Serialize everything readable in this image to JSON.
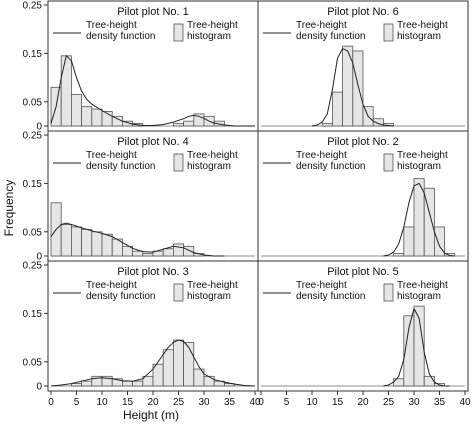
{
  "figure": {
    "ylabel": "Frequency",
    "xlabel": "Height (m)",
    "x_ticks": [
      0,
      5,
      10,
      15,
      20,
      25,
      30,
      35,
      40
    ],
    "y_ticks": [
      0,
      0.05,
      0.15,
      0.25
    ],
    "y_tick_labels": [
      "0",
      "0.05",
      "0.15",
      "0.25"
    ],
    "xlim": [
      0,
      40
    ],
    "ylim": [
      0,
      0.25
    ],
    "legend": {
      "curve_label_line1": "Tree-height",
      "curve_label_line2": "density function",
      "hist_label_line1": "Tree-height",
      "hist_label_line2": "histogram"
    }
  },
  "chart_data": [
    {
      "type": "bar",
      "title": "Pilot plot No. 1",
      "bin_width": 2,
      "bin_starts": [
        0,
        2,
        4,
        6,
        8,
        10,
        12,
        14,
        16,
        18,
        20,
        22,
        24,
        26,
        28,
        30,
        32,
        34,
        36,
        38
      ],
      "values": [
        0.08,
        0.145,
        0.065,
        0.04,
        0.035,
        0.03,
        0.02,
        0.01,
        0.005,
        0,
        0,
        0,
        0.005,
        0.01,
        0.025,
        0.02,
        0.01,
        0,
        0,
        0
      ],
      "density_x": [
        0,
        1,
        2,
        3,
        4,
        5,
        6,
        7,
        8,
        10,
        12,
        14,
        16,
        18,
        20,
        22,
        24,
        26,
        27,
        28,
        29,
        30,
        31,
        32,
        34,
        36,
        38,
        40
      ],
      "density_y": [
        0.005,
        0.04,
        0.1,
        0.145,
        0.135,
        0.1,
        0.072,
        0.055,
        0.045,
        0.032,
        0.02,
        0.01,
        0.004,
        0.001,
        0.001,
        0.003,
        0.008,
        0.015,
        0.02,
        0.022,
        0.02,
        0.016,
        0.01,
        0.006,
        0.002,
        0,
        0,
        0
      ]
    },
    {
      "type": "bar",
      "title": "Pilot plot No. 6",
      "bin_width": 2,
      "bin_starts": [
        0,
        2,
        4,
        6,
        8,
        10,
        12,
        14,
        16,
        18,
        20,
        22,
        24,
        26,
        28,
        30,
        32,
        34,
        36,
        38
      ],
      "values": [
        0,
        0,
        0,
        0,
        0,
        0,
        0.005,
        0.07,
        0.165,
        0.155,
        0.04,
        0.015,
        0.005,
        0,
        0,
        0,
        0,
        0,
        0,
        0
      ],
      "density_x": [
        10,
        11,
        12,
        13,
        14,
        15,
        16,
        17,
        18,
        19,
        20,
        21,
        22,
        23,
        24,
        25,
        26
      ],
      "density_y": [
        0,
        0.002,
        0.008,
        0.025,
        0.075,
        0.14,
        0.16,
        0.155,
        0.13,
        0.085,
        0.045,
        0.02,
        0.01,
        0.005,
        0.002,
        0.001,
        0
      ]
    },
    {
      "type": "bar",
      "title": "Pilot plot No. 4",
      "bin_width": 2,
      "bin_starts": [
        0,
        2,
        4,
        6,
        8,
        10,
        12,
        14,
        16,
        18,
        20,
        22,
        24,
        26,
        28,
        30,
        32,
        34,
        36,
        38
      ],
      "values": [
        0.11,
        0.065,
        0.06,
        0.055,
        0.05,
        0.045,
        0.035,
        0.02,
        0.01,
        0.005,
        0.01,
        0.015,
        0.025,
        0.02,
        0.005,
        0,
        0,
        0,
        0,
        0
      ],
      "density_x": [
        0,
        1,
        2,
        3,
        4,
        6,
        8,
        10,
        12,
        14,
        16,
        18,
        20,
        22,
        24,
        26,
        28,
        30,
        32,
        34
      ],
      "density_y": [
        0.04,
        0.055,
        0.065,
        0.068,
        0.065,
        0.058,
        0.052,
        0.047,
        0.04,
        0.028,
        0.016,
        0.009,
        0.008,
        0.014,
        0.02,
        0.017,
        0.007,
        0.002,
        0,
        0
      ]
    },
    {
      "type": "bar",
      "title": "Pilot plot No. 2",
      "bin_width": 2,
      "bin_starts": [
        0,
        2,
        4,
        6,
        8,
        10,
        12,
        14,
        16,
        18,
        20,
        22,
        24,
        26,
        28,
        30,
        32,
        34,
        36,
        38
      ],
      "values": [
        0,
        0,
        0,
        0,
        0,
        0,
        0,
        0,
        0,
        0,
        0,
        0,
        0,
        0.005,
        0.06,
        0.16,
        0.14,
        0.06,
        0.005,
        0
      ],
      "density_x": [
        24,
        25,
        26,
        27,
        28,
        29,
        30,
        31,
        32,
        33,
        34,
        35,
        36,
        37,
        38
      ],
      "density_y": [
        0,
        0.002,
        0.008,
        0.025,
        0.06,
        0.11,
        0.145,
        0.15,
        0.13,
        0.09,
        0.05,
        0.02,
        0.006,
        0.001,
        0
      ]
    },
    {
      "type": "bar",
      "title": "Pilot plot No. 3",
      "bin_width": 2,
      "bin_starts": [
        0,
        2,
        4,
        6,
        8,
        10,
        12,
        14,
        16,
        18,
        20,
        22,
        24,
        26,
        28,
        30,
        32,
        34,
        36,
        38
      ],
      "values": [
        0,
        0,
        0.005,
        0.01,
        0.02,
        0.02,
        0.015,
        0.01,
        0.01,
        0.02,
        0.045,
        0.075,
        0.095,
        0.09,
        0.035,
        0.02,
        0.01,
        0.005,
        0,
        0
      ],
      "density_x": [
        0,
        2,
        4,
        6,
        8,
        10,
        12,
        14,
        16,
        18,
        20,
        21,
        22,
        23,
        24,
        25,
        26,
        27,
        28,
        29,
        30,
        32,
        34,
        36,
        38,
        40
      ],
      "density_y": [
        0,
        0.002,
        0.005,
        0.01,
        0.015,
        0.017,
        0.015,
        0.011,
        0.01,
        0.015,
        0.035,
        0.05,
        0.065,
        0.08,
        0.09,
        0.095,
        0.092,
        0.08,
        0.06,
        0.04,
        0.025,
        0.013,
        0.008,
        0.004,
        0.001,
        0
      ]
    },
    {
      "type": "bar",
      "title": "Pilot plot No. 5",
      "bin_width": 2,
      "bin_starts": [
        0,
        2,
        4,
        6,
        8,
        10,
        12,
        14,
        16,
        18,
        20,
        22,
        24,
        26,
        28,
        30,
        32,
        34,
        36,
        38
      ],
      "values": [
        0,
        0,
        0,
        0,
        0,
        0,
        0,
        0,
        0,
        0,
        0,
        0,
        0,
        0.015,
        0.145,
        0.165,
        0.02,
        0.005,
        0,
        0
      ],
      "density_x": [
        24,
        25,
        26,
        27,
        28,
        29,
        30,
        31,
        32,
        33,
        34,
        35,
        36,
        37
      ],
      "density_y": [
        0,
        0.002,
        0.008,
        0.02,
        0.055,
        0.12,
        0.16,
        0.14,
        0.07,
        0.025,
        0.008,
        0.002,
        0,
        0
      ]
    }
  ]
}
